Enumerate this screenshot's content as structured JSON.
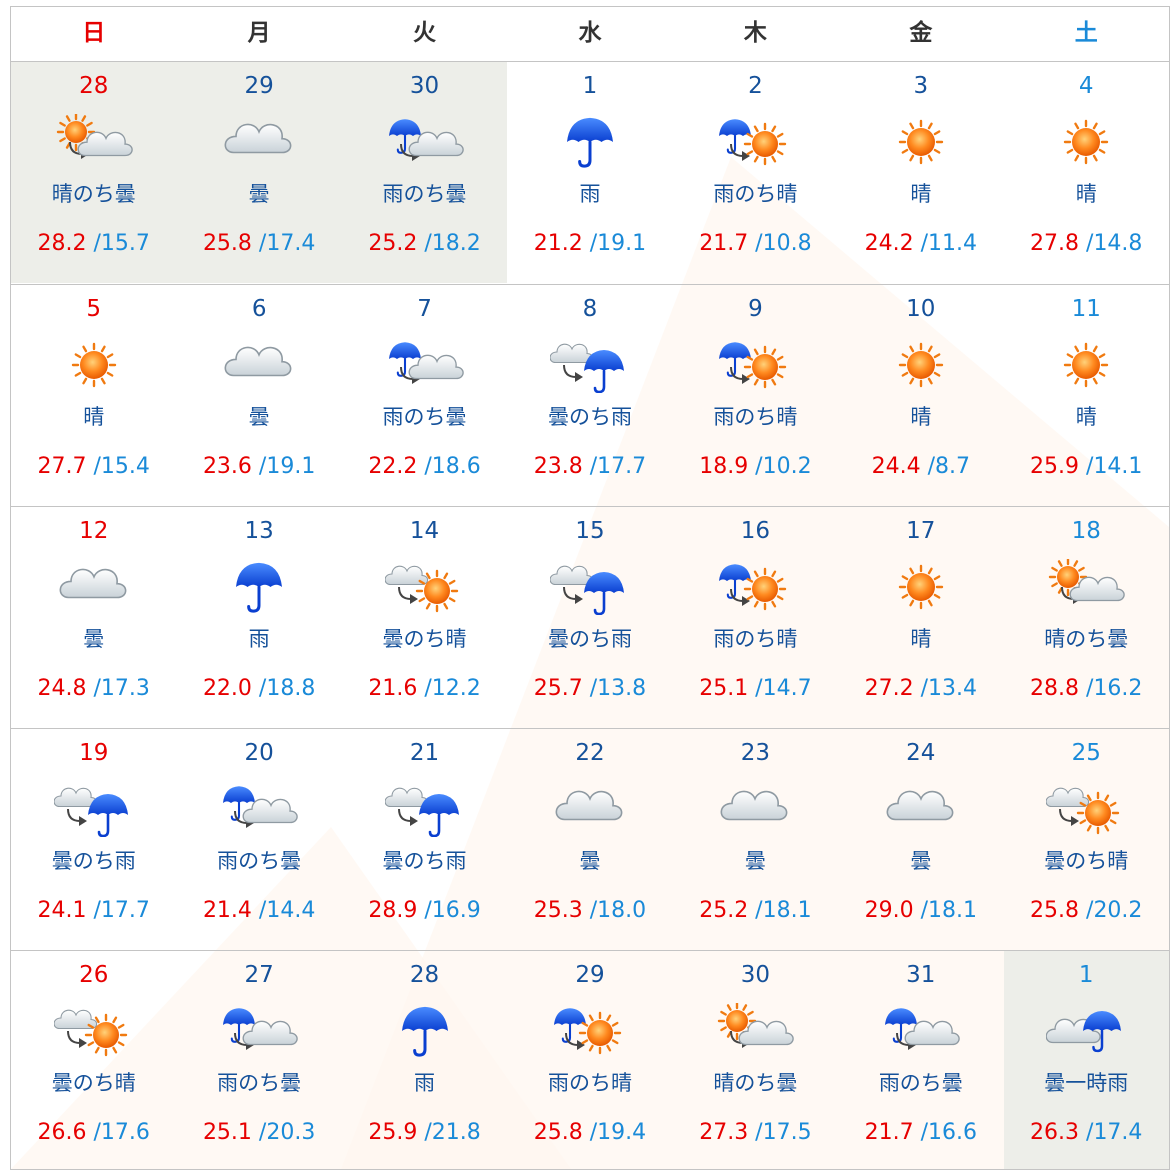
{
  "weekdays": [
    {
      "label": "日",
      "kind": "sun"
    },
    {
      "label": "月",
      "kind": "wd"
    },
    {
      "label": "火",
      "kind": "wd"
    },
    {
      "label": "水",
      "kind": "wd"
    },
    {
      "label": "木",
      "kind": "wd"
    },
    {
      "label": "金",
      "kind": "wd"
    },
    {
      "label": "土",
      "kind": "sat"
    }
  ],
  "colors": {
    "holiday_red": "#e60000",
    "saturday_blue": "#1a8ad8",
    "text_navy": "#15519a",
    "other_month_bg": "#edeee9",
    "border": "#c4c4c4"
  },
  "weeks": [
    [
      {
        "date": "28",
        "weather": "晴のち曇",
        "icon": "sun-then-cloud",
        "hi": "28.2",
        "lo": "15.7",
        "other": true
      },
      {
        "date": "29",
        "weather": "曇",
        "icon": "cloud",
        "hi": "25.8",
        "lo": "17.4",
        "other": true
      },
      {
        "date": "30",
        "weather": "雨のち曇",
        "icon": "rain-then-cloud",
        "hi": "25.2",
        "lo": "18.2",
        "other": true
      },
      {
        "date": "1",
        "weather": "雨",
        "icon": "rain",
        "hi": "21.2",
        "lo": "19.1",
        "other": false
      },
      {
        "date": "2",
        "weather": "雨のち晴",
        "icon": "rain-then-sun",
        "hi": "21.7",
        "lo": "10.8",
        "other": false
      },
      {
        "date": "3",
        "weather": "晴",
        "icon": "sun",
        "hi": "24.2",
        "lo": "11.4",
        "other": false
      },
      {
        "date": "4",
        "weather": "晴",
        "icon": "sun",
        "hi": "27.8",
        "lo": "14.8",
        "other": false
      }
    ],
    [
      {
        "date": "5",
        "weather": "晴",
        "icon": "sun",
        "hi": "27.7",
        "lo": "15.4",
        "other": false
      },
      {
        "date": "6",
        "weather": "曇",
        "icon": "cloud",
        "hi": "23.6",
        "lo": "19.1",
        "other": false
      },
      {
        "date": "7",
        "weather": "雨のち曇",
        "icon": "rain-then-cloud",
        "hi": "22.2",
        "lo": "18.6",
        "other": false
      },
      {
        "date": "8",
        "weather": "曇のち雨",
        "icon": "cloud-then-rain",
        "hi": "23.8",
        "lo": "17.7",
        "other": false
      },
      {
        "date": "9",
        "weather": "雨のち晴",
        "icon": "rain-then-sun",
        "hi": "18.9",
        "lo": "10.2",
        "other": false
      },
      {
        "date": "10",
        "weather": "晴",
        "icon": "sun",
        "hi": "24.4",
        "lo": "8.7",
        "other": false
      },
      {
        "date": "11",
        "weather": "晴",
        "icon": "sun",
        "hi": "25.9",
        "lo": "14.1",
        "other": false
      }
    ],
    [
      {
        "date": "12",
        "weather": "曇",
        "icon": "cloud",
        "hi": "24.8",
        "lo": "17.3",
        "other": false
      },
      {
        "date": "13",
        "weather": "雨",
        "icon": "rain",
        "hi": "22.0",
        "lo": "18.8",
        "other": false
      },
      {
        "date": "14",
        "weather": "曇のち晴",
        "icon": "cloud-then-sun",
        "hi": "21.6",
        "lo": "12.2",
        "other": false
      },
      {
        "date": "15",
        "weather": "曇のち雨",
        "icon": "cloud-then-rain",
        "hi": "25.7",
        "lo": "13.8",
        "other": false
      },
      {
        "date": "16",
        "weather": "雨のち晴",
        "icon": "rain-then-sun",
        "hi": "25.1",
        "lo": "14.7",
        "other": false
      },
      {
        "date": "17",
        "weather": "晴",
        "icon": "sun",
        "hi": "27.2",
        "lo": "13.4",
        "other": false
      },
      {
        "date": "18",
        "weather": "晴のち曇",
        "icon": "sun-then-cloud",
        "hi": "28.8",
        "lo": "16.2",
        "other": false
      }
    ],
    [
      {
        "date": "19",
        "weather": "曇のち雨",
        "icon": "cloud-then-rain",
        "hi": "24.1",
        "lo": "17.7",
        "other": false
      },
      {
        "date": "20",
        "weather": "雨のち曇",
        "icon": "rain-then-cloud",
        "hi": "21.4",
        "lo": "14.4",
        "other": false
      },
      {
        "date": "21",
        "weather": "曇のち雨",
        "icon": "cloud-then-rain",
        "hi": "28.9",
        "lo": "16.9",
        "other": false
      },
      {
        "date": "22",
        "weather": "曇",
        "icon": "cloud",
        "hi": "25.3",
        "lo": "18.0",
        "other": false
      },
      {
        "date": "23",
        "weather": "曇",
        "icon": "cloud",
        "hi": "25.2",
        "lo": "18.1",
        "other": false
      },
      {
        "date": "24",
        "weather": "曇",
        "icon": "cloud",
        "hi": "29.0",
        "lo": "18.1",
        "other": false
      },
      {
        "date": "25",
        "weather": "曇のち晴",
        "icon": "cloud-then-sun",
        "hi": "25.8",
        "lo": "20.2",
        "other": false
      }
    ],
    [
      {
        "date": "26",
        "weather": "曇のち晴",
        "icon": "cloud-then-sun",
        "hi": "26.6",
        "lo": "17.6",
        "other": false
      },
      {
        "date": "27",
        "weather": "雨のち曇",
        "icon": "rain-then-cloud",
        "hi": "25.1",
        "lo": "20.3",
        "other": false
      },
      {
        "date": "28",
        "weather": "雨",
        "icon": "rain",
        "hi": "25.9",
        "lo": "21.8",
        "other": false
      },
      {
        "date": "29",
        "weather": "雨のち晴",
        "icon": "rain-then-sun",
        "hi": "25.8",
        "lo": "19.4",
        "other": false
      },
      {
        "date": "30",
        "weather": "晴のち曇",
        "icon": "sun-then-cloud",
        "hi": "27.3",
        "lo": "17.5",
        "other": false
      },
      {
        "date": "31",
        "weather": "雨のち曇",
        "icon": "rain-then-cloud",
        "hi": "21.7",
        "lo": "16.6",
        "other": false
      },
      {
        "date": "1",
        "weather": "曇一時雨",
        "icon": "cloud-sometimes-rain",
        "hi": "26.3",
        "lo": "17.4",
        "other": true
      }
    ]
  ]
}
